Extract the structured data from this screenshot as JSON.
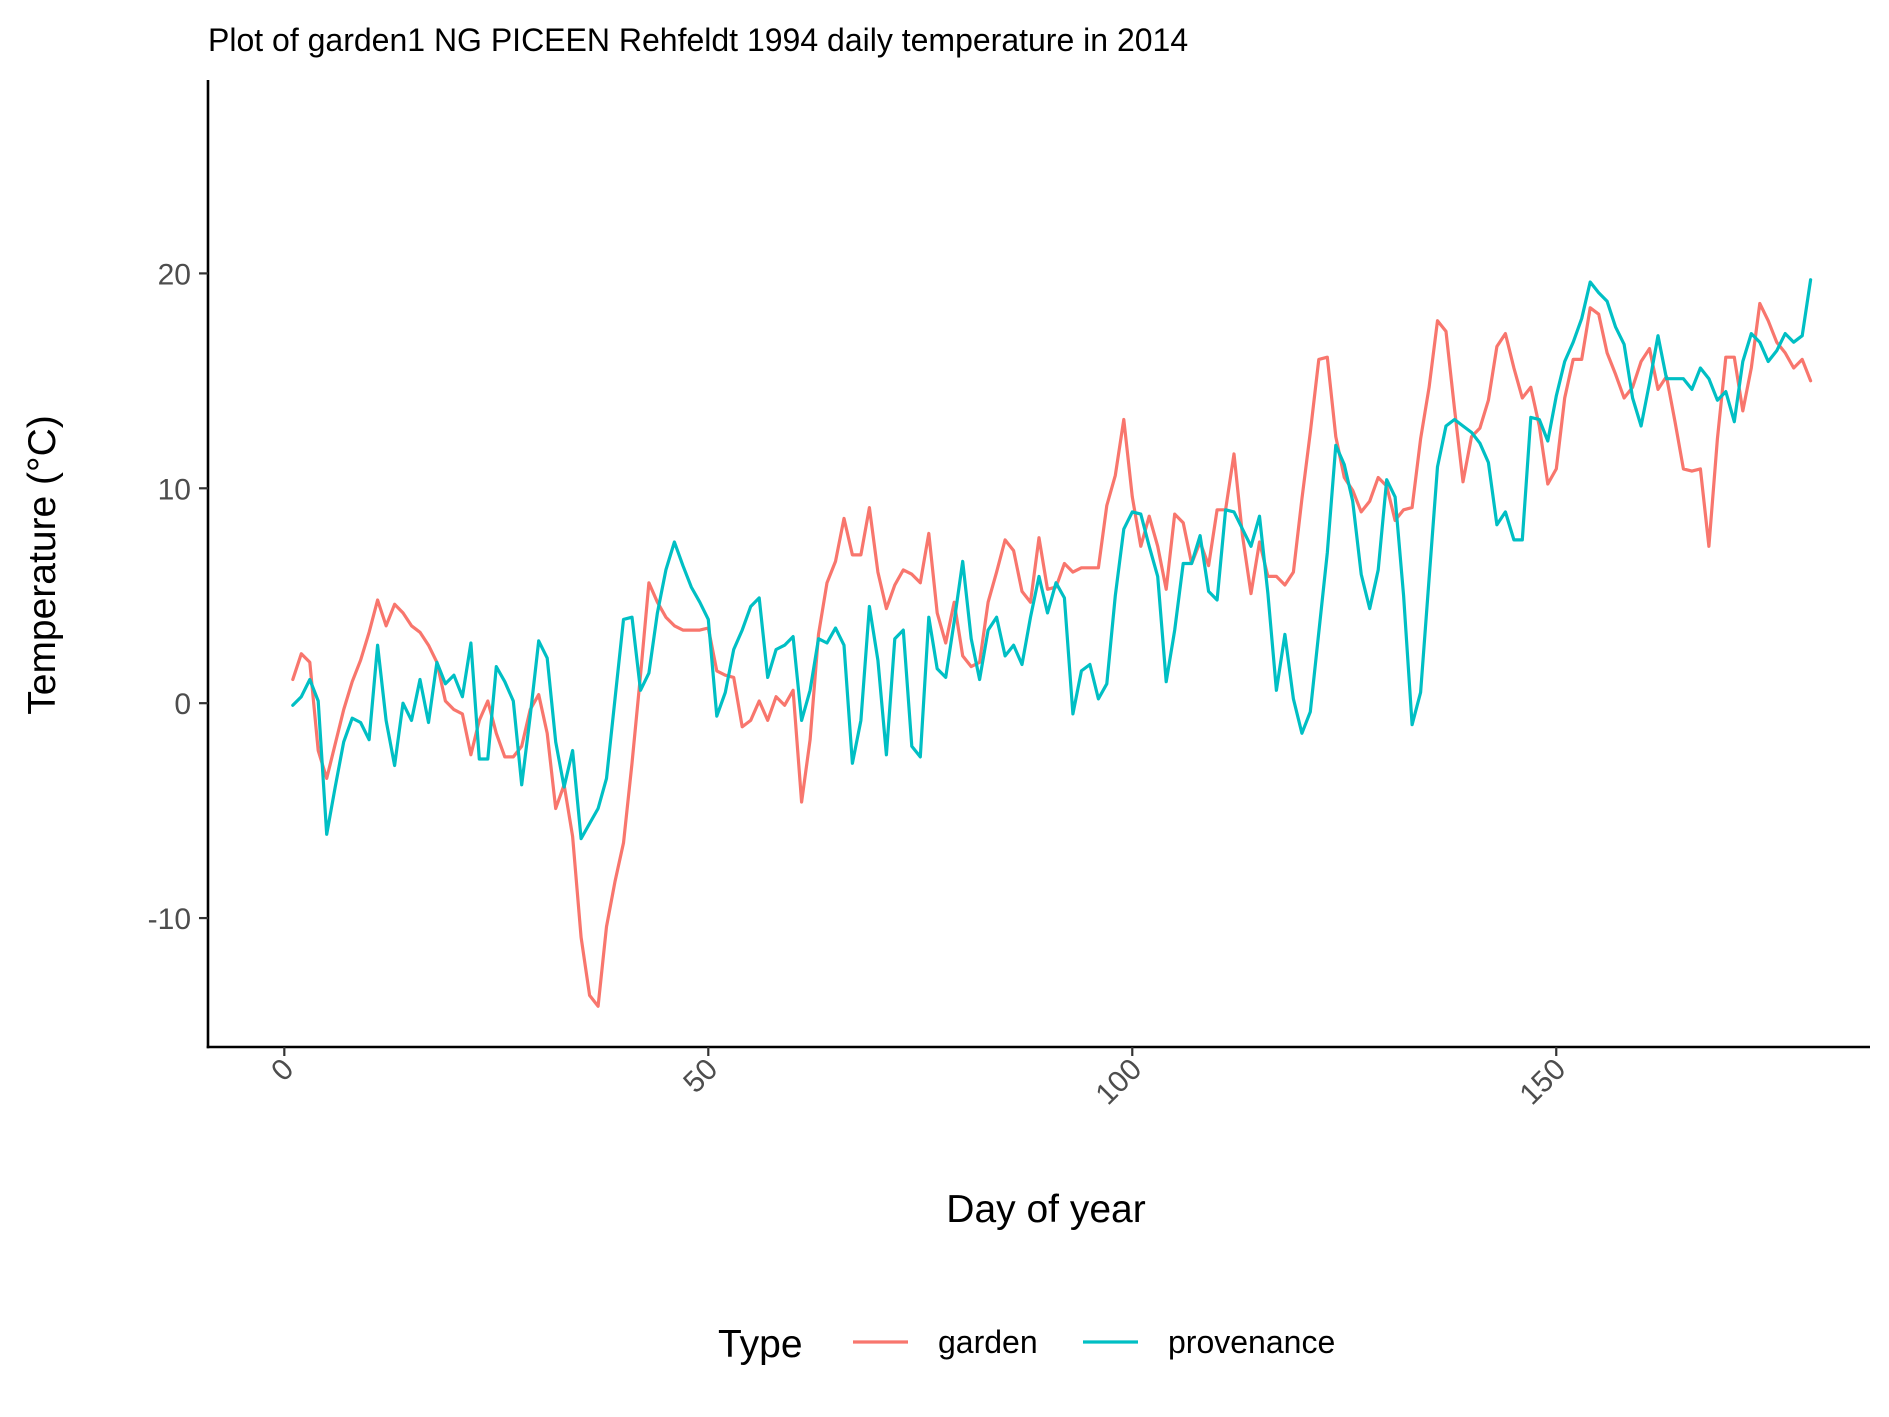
{
  "chart_data": {
    "type": "line",
    "title": "Plot of garden1 NG PICEEN Rehfeldt 1994 daily temperature in 2014",
    "xlabel": "Day of year",
    "ylabel": "Temperature (°C)",
    "xlim": [
      -9,
      187
    ],
    "ylim": [
      -16,
      29
    ],
    "xticks": [
      0,
      50,
      100,
      150
    ],
    "xtick_labels": [
      "0",
      "50",
      "100",
      "150"
    ],
    "yticks": [
      -10,
      0,
      10,
      20
    ],
    "ytick_labels": [
      "-10",
      "0",
      "10",
      "20"
    ],
    "grid": false,
    "legend": {
      "title": "Type",
      "position": "bottom",
      "entries": [
        "garden",
        "provenance"
      ]
    },
    "x": [
      1,
      2,
      3,
      4,
      5,
      6,
      7,
      8,
      9,
      10,
      11,
      12,
      13,
      14,
      15,
      16,
      17,
      18,
      19,
      20,
      21,
      22,
      23,
      24,
      25,
      26,
      27,
      28,
      29,
      30,
      31,
      32,
      33,
      34,
      35,
      36,
      37,
      38,
      39,
      40,
      41,
      42,
      43,
      44,
      45,
      46,
      47,
      48,
      49,
      50,
      51,
      52,
      53,
      54,
      55,
      56,
      57,
      58,
      59,
      60,
      61,
      62,
      63,
      64,
      65,
      66,
      67,
      68,
      69,
      70,
      71,
      72,
      73,
      74,
      75,
      76,
      77,
      78,
      79,
      80,
      81,
      82,
      83,
      84,
      85,
      86,
      87,
      88,
      89,
      90,
      91,
      92,
      93,
      94,
      95,
      96,
      97,
      98,
      99,
      100,
      101,
      102,
      103,
      104,
      105,
      106,
      107,
      108,
      109,
      110,
      111,
      112,
      113,
      114,
      115,
      116,
      117,
      118,
      119,
      120,
      121,
      122,
      123,
      124,
      125,
      126,
      127,
      128,
      129,
      130,
      131,
      132,
      133,
      134,
      135,
      136,
      137,
      138,
      139,
      140,
      141,
      142,
      143,
      144,
      145,
      146,
      147,
      148,
      149,
      150,
      151,
      152,
      153,
      154,
      155,
      156,
      157,
      158,
      159,
      160,
      161,
      162,
      163,
      164,
      165,
      166,
      167,
      168,
      169,
      170,
      171,
      172,
      173,
      174,
      175,
      176,
      177,
      178,
      179,
      180
    ],
    "series": [
      {
        "name": "garden",
        "color": "#F8766D",
        "values": [
          1.1,
          2.3,
          1.9,
          -2.2,
          -3.5,
          -1.9,
          -0.3,
          1.0,
          2.0,
          3.3,
          4.8,
          3.6,
          4.6,
          4.2,
          3.6,
          3.3,
          2.7,
          1.9,
          0.1,
          -0.3,
          -0.5,
          -2.4,
          -0.8,
          0.1,
          -1.4,
          -2.5,
          -2.5,
          -2.0,
          -0.3,
          0.4,
          -1.4,
          -4.9,
          -3.8,
          -6.2,
          -10.9,
          -13.6,
          -14.1,
          -10.4,
          -8.3,
          -6.5,
          -2.8,
          1.3,
          5.6,
          4.7,
          4.0,
          3.6,
          3.4,
          3.4,
          3.4,
          3.5,
          1.5,
          1.3,
          1.2,
          -1.1,
          -0.8,
          0.1,
          -0.8,
          0.3,
          -0.1,
          0.6,
          -4.6,
          -1.7,
          3.2,
          5.6,
          6.6,
          8.6,
          6.9,
          6.9,
          9.1,
          6.1,
          4.4,
          5.5,
          6.2,
          6.0,
          5.6,
          7.9,
          4.2,
          2.8,
          4.7,
          2.2,
          1.7,
          1.9,
          4.7,
          6.1,
          7.6,
          7.1,
          5.2,
          4.7,
          7.7,
          5.3,
          5.4,
          6.5,
          6.1,
          6.3,
          6.3,
          6.3,
          9.2,
          10.6,
          13.2,
          9.6,
          7.3,
          8.7,
          7.3,
          5.3,
          8.8,
          8.4,
          6.5,
          7.5,
          6.4,
          9.0,
          9.0,
          11.6,
          7.8,
          5.1,
          7.5,
          5.9,
          5.9,
          5.5,
          6.1,
          9.5,
          12.6,
          16.0,
          16.1,
          12.4,
          10.5,
          9.9,
          8.9,
          9.4,
          10.5,
          10.1,
          8.5,
          9.0,
          9.1,
          12.3,
          14.7,
          17.8,
          17.3,
          13.7,
          10.3,
          12.4,
          12.8,
          14.1,
          16.6,
          17.2,
          15.6,
          14.2,
          14.7,
          12.9,
          10.2,
          10.9,
          14.2,
          16.0,
          16.0,
          18.4,
          18.1,
          16.3,
          15.3,
          14.2,
          14.7,
          15.9,
          16.5,
          14.6,
          15.2,
          13.1,
          10.9,
          10.8,
          10.9,
          7.3,
          12.3,
          16.1,
          16.1,
          13.6,
          15.6,
          18.6,
          17.8,
          16.8,
          16.3,
          15.6,
          16.0,
          15.0
        ]
      },
      {
        "name": "provenance",
        "color": "#00BFC4",
        "values": [
          -0.1,
          0.3,
          1.1,
          0.1,
          -6.1,
          -3.9,
          -1.8,
          -0.7,
          -0.9,
          -1.7,
          2.7,
          -0.8,
          -2.9,
          0.0,
          -0.8,
          1.1,
          -0.9,
          1.9,
          0.9,
          1.3,
          0.3,
          2.8,
          -2.6,
          -2.6,
          1.7,
          1.0,
          0.1,
          -3.8,
          -0.6,
          2.9,
          2.1,
          -1.8,
          -3.9,
          -2.2,
          -6.3,
          -5.6,
          -4.9,
          -3.5,
          0.2,
          3.9,
          4.0,
          0.6,
          1.4,
          4.2,
          6.2,
          7.5,
          6.4,
          5.4,
          4.7,
          3.9,
          -0.6,
          0.5,
          2.5,
          3.4,
          4.5,
          4.9,
          1.2,
          2.5,
          2.7,
          3.1,
          -0.8,
          0.6,
          3.0,
          2.8,
          3.5,
          2.7,
          -2.8,
          -0.8,
          4.5,
          2.0,
          -2.4,
          3.0,
          3.4,
          -2.0,
          -2.5,
          4.0,
          1.6,
          1.2,
          3.8,
          6.6,
          3.0,
          1.1,
          3.4,
          4.0,
          2.2,
          2.7,
          1.8,
          4.0,
          5.9,
          4.2,
          5.6,
          4.9,
          -0.5,
          1.5,
          1.8,
          0.2,
          0.9,
          5.0,
          8.1,
          8.9,
          8.8,
          7.3,
          5.9,
          1.0,
          3.4,
          6.5,
          6.5,
          7.8,
          5.2,
          4.8,
          9.0,
          8.9,
          8.1,
          7.3,
          8.7,
          5.1,
          0.6,
          3.2,
          0.2,
          -1.4,
          -0.4,
          3.3,
          7.0,
          12.0,
          11.1,
          9.4,
          6.0,
          4.4,
          6.2,
          10.4,
          9.6,
          5.0,
          -1.0,
          0.5,
          5.8,
          11.0,
          12.9,
          13.2,
          12.9,
          12.6,
          12.1,
          11.2,
          8.3,
          8.9,
          7.6,
          7.6,
          13.3,
          13.2,
          12.2,
          14.3,
          15.9,
          16.8,
          17.9,
          19.6,
          19.1,
          18.7,
          17.5,
          16.7,
          14.2,
          12.9,
          14.9,
          17.1,
          15.1,
          15.1,
          15.1,
          14.6,
          15.6,
          15.1,
          14.1,
          14.5,
          13.1,
          15.9,
          17.2,
          16.8,
          15.9,
          16.4,
          17.2,
          16.8,
          17.1,
          19.7
        ]
      }
    ]
  }
}
